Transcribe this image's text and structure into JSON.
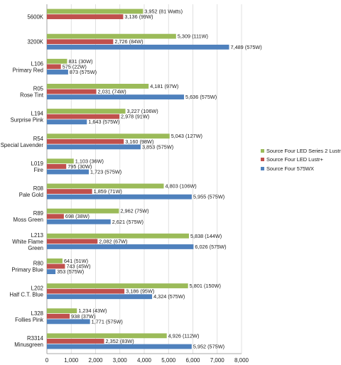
{
  "chart_data": {
    "type": "bar",
    "orientation": "horizontal",
    "title": "",
    "xlabel": "",
    "ylabel": "",
    "xlim": [
      0,
      8000
    ],
    "xticks": [
      "0",
      "1,000",
      "2,000",
      "3,000",
      "4,000",
      "5,000",
      "6,000",
      "7,000",
      "8,000"
    ],
    "grid": true,
    "legend_position": "right",
    "categories": [
      [
        "5600K"
      ],
      [
        "3200K"
      ],
      [
        "L106",
        "Primary Red"
      ],
      [
        "R05",
        "Rose Tint"
      ],
      [
        "L194",
        "Surprise Pink"
      ],
      [
        "R54",
        "Special Lavender"
      ],
      [
        "L019",
        "Fire"
      ],
      [
        "R08",
        "Pale Gold"
      ],
      [
        "R89",
        "Moss Green"
      ],
      [
        "L213",
        "White Flame",
        "Green"
      ],
      [
        "R80",
        "Primary Blue"
      ],
      [
        "L202",
        "Half C.T. Blue"
      ],
      [
        "L328",
        "Follies Pink"
      ],
      [
        "R3314",
        "Minusgreen"
      ]
    ],
    "series": [
      {
        "name": "Source Four LED Series 2 Lustr",
        "color": "#9bbb59",
        "values": [
          3952,
          5309,
          831,
          4181,
          3227,
          5043,
          1103,
          4803,
          2962,
          5838,
          641,
          5801,
          1234,
          4926
        ],
        "labels": [
          "3,952 (81 Watts)",
          "5,309 (111W)",
          "831 (30W)",
          "4,181 (97W)",
          "3,227 (106W)",
          "5,043 (127W)",
          "1,103 (36W)",
          "4,803 (106W)",
          "2,962 (75W)",
          "5,838 (144W)",
          "641 (51W)",
          "5,801 (150W)",
          "1,234 (43W)",
          "4,926 (112W)"
        ]
      },
      {
        "name": "Source Four LED Lustr+",
        "color": "#c0504d",
        "values": [
          3136,
          2726,
          575,
          2031,
          2978,
          3160,
          795,
          1859,
          698,
          2082,
          743,
          3186,
          938,
          2352
        ],
        "labels": [
          "3,136 (99W)",
          "2,726 (84W)",
          "575 (22W)",
          "2,031 (74W)",
          "2,978 (91W)",
          "3,160 (98W)",
          "795 (30W)",
          "1,859 (71W)",
          "698 (38W)",
          "2,082 (67W)",
          "743 (45W)",
          "3,186 (95W)",
          "938 (37W)",
          "2,352 (83W)"
        ]
      },
      {
        "name": "Source Four 575WX",
        "color": "#4f81bd",
        "values": [
          null,
          7489,
          873,
          5636,
          1643,
          3853,
          1723,
          5955,
          2621,
          6026,
          353,
          4324,
          1771,
          5952
        ],
        "labels": [
          null,
          "7,489 (575W)",
          "873 (575W)",
          "5,636 (575W)",
          "1,643 (575W)",
          "3,853 (575W)",
          "1,723 (575W)",
          "5,955 (575W)",
          "2,621 (575W)",
          "6,026 (575W)",
          "353 (575W)",
          "4,324 (575W)",
          "1,771 (575W)",
          "5,952 (575W)"
        ]
      }
    ]
  }
}
